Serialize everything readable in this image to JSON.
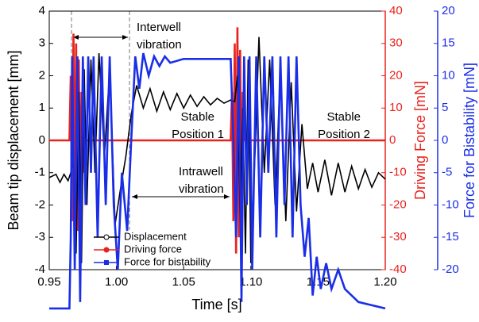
{
  "chart_data": {
    "type": "line",
    "xlabel": "Time [s]",
    "ylabel": "Beam tip displacement [mm]",
    "y2label": "Driving Force [mN]",
    "y3label": "Force for Bistability [mN]",
    "xlim": [
      0.95,
      1.2
    ],
    "xticks": [
      0.95,
      {
        "value": 1.0,
        "label": "1.00"
      },
      1.05,
      {
        "value": 1.1,
        "label": "1.10"
      },
      1.15,
      {
        "value": 1.2,
        "label": "1.20"
      }
    ],
    "ylim": [
      -4,
      4
    ],
    "yticks": [
      -4,
      -3,
      -2,
      -1,
      0,
      1,
      2,
      3,
      4
    ],
    "y2lim": [
      -40,
      40
    ],
    "y2ticks": [
      -40,
      -30,
      -20,
      -10,
      0,
      10,
      20,
      30,
      40
    ],
    "y3lim": [
      -20,
      20
    ],
    "y3ticks": [
      -20,
      -15,
      -10,
      -5,
      0,
      5,
      10,
      15,
      20
    ],
    "legend": "lower left",
    "annotations": [
      [
        "Interwell",
        "vibration"
      ],
      [
        "Stable",
        "Position 1"
      ],
      [
        "Intrawell",
        "vibration"
      ],
      [
        "Stable",
        "Position 2"
      ]
    ],
    "series": [
      {
        "name": "Displacement",
        "color": "#000000",
        "axis": "y",
        "x": [
          0.95,
          0.955,
          0.958,
          0.961,
          0.964,
          0.966,
          0.968,
          0.97,
          0.972,
          0.974,
          0.976,
          0.978,
          0.981,
          0.984,
          0.987,
          0.991,
          0.995,
          0.999,
          1.003,
          1.007,
          1.011,
          1.015,
          1.02,
          1.025,
          1.03,
          1.035,
          1.04,
          1.045,
          1.05,
          1.055,
          1.06,
          1.065,
          1.07,
          1.075,
          1.08,
          1.085,
          1.088,
          1.09,
          1.092,
          1.094,
          1.096,
          1.098,
          1.1,
          1.103,
          1.106,
          1.11,
          1.114,
          1.118,
          1.122,
          1.126,
          1.13,
          1.134,
          1.138,
          1.142,
          1.146,
          1.15,
          1.155,
          1.16,
          1.165,
          1.17,
          1.175,
          1.18,
          1.185,
          1.19,
          1.195,
          1.2
        ],
        "values": [
          -1.15,
          -1.05,
          -1.3,
          -1.05,
          -1.25,
          -1.0,
          -0.6,
          -3.5,
          1.5,
          -3.8,
          2.2,
          -2.0,
          2.5,
          -1.0,
          2.7,
          -0.5,
          2.2,
          -2.6,
          -1.5,
          -0.5,
          0.8,
          1.7,
          1.0,
          1.6,
          0.9,
          1.5,
          0.95,
          1.45,
          1.0,
          1.4,
          1.05,
          1.35,
          1.1,
          1.3,
          1.15,
          1.25,
          1.2,
          2.0,
          -2.5,
          1.0,
          -3.5,
          2.5,
          -3.8,
          -0.5,
          3.2,
          -1.0,
          2.5,
          -2.0,
          2.2,
          -2.5,
          1.8,
          -2.2,
          0.5,
          -1.5,
          -0.7,
          -1.6,
          -0.6,
          -1.7,
          -0.7,
          -1.6,
          -0.8,
          -1.5,
          -0.9,
          -1.45,
          -1.0,
          -1.2
        ]
      },
      {
        "name": "Driving force",
        "color": "#e8231e",
        "axis": "y2",
        "x": [
          0.95,
          0.965,
          0.966,
          0.967,
          0.968,
          0.969,
          0.97,
          0.971,
          0.972,
          0.973,
          0.974,
          0.975,
          0.976,
          1.085,
          1.086,
          1.087,
          1.088,
          1.089,
          1.09,
          1.091,
          1.092,
          1.093,
          1.094,
          1.095,
          1.2
        ],
        "values": [
          0,
          0,
          20,
          -25,
          33,
          -35,
          30,
          -28,
          25,
          -20,
          15,
          -10,
          0,
          0,
          15,
          -25,
          30,
          -35,
          35,
          -30,
          28,
          -25,
          15,
          0,
          0
        ]
      },
      {
        "name": "Force for bistability",
        "color": "#1a2ee8",
        "axis": "y3",
        "x": [
          0.95,
          0.965,
          0.966,
          0.967,
          0.969,
          0.971,
          0.973,
          0.975,
          0.977,
          0.979,
          0.981,
          0.983,
          0.986,
          0.989,
          0.992,
          0.995,
          0.998,
          1.001,
          1.004,
          1.008,
          1.011,
          1.014,
          1.017,
          1.02,
          1.024,
          1.028,
          1.032,
          1.036,
          1.04,
          1.05,
          1.085,
          1.087,
          1.089,
          1.091,
          1.093,
          1.095,
          1.097,
          1.099,
          1.101,
          1.104,
          1.107,
          1.11,
          1.113,
          1.116,
          1.119,
          1.122,
          1.125,
          1.128,
          1.131,
          1.134,
          1.137,
          1.14,
          1.143,
          1.146,
          1.149,
          1.152,
          1.156,
          1.16,
          1.165,
          1.17,
          1.175,
          1.18,
          1.2
        ],
        "values": [
          -26,
          -26,
          -15,
          13,
          -20,
          13,
          -25,
          13,
          -10,
          13,
          -5,
          13,
          -15,
          13,
          -10,
          13,
          -10,
          -20,
          -5,
          -14,
          0,
          13,
          8,
          13.5,
          10,
          13,
          11.5,
          13,
          12,
          12.6,
          12.6,
          0,
          -15,
          13,
          -25,
          13,
          -10,
          13,
          -20,
          13,
          -15,
          13,
          -5,
          13,
          -15,
          13,
          -10,
          13,
          -15,
          13,
          -10,
          -18,
          -12,
          -24,
          -18,
          -23,
          -19,
          -23,
          -20,
          -23,
          -24,
          -25,
          -26
        ]
      }
    ]
  }
}
